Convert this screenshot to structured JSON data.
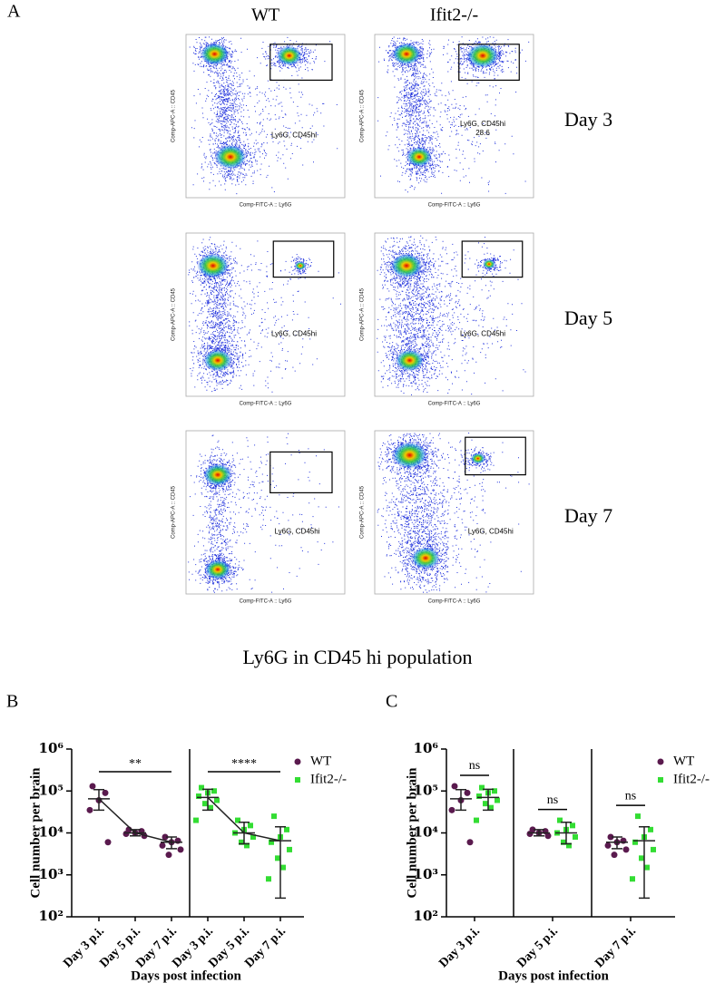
{
  "panel_a": {
    "label": "A",
    "columns": [
      "WT",
      "Ifit2-/-"
    ],
    "days": [
      "Day 3",
      "Day 5",
      "Day 7"
    ],
    "x_axis_label": "Comp-FITC-A :: Ly6G",
    "y_axis_label": "Comp-APC-A :: CD45",
    "gates": [
      [
        {
          "label": "Ly6G, CD45hi"
        },
        {
          "label": "Ly6G, CD45hi",
          "value": 28.6
        }
      ],
      [
        {
          "label": "Ly6G, CD45hi"
        },
        {
          "label": "Ly6G, CD45hi"
        }
      ],
      [
        {
          "label": "Ly6G, CD45hi"
        },
        {
          "label": "Ly6G, CD45hi"
        }
      ]
    ]
  },
  "section_title": "Ly6G in CD45 hi population",
  "chart_data": [
    {
      "type": "dot",
      "panel_label": "B",
      "y_label": "Cell number per brain",
      "x_label": "Days post infection",
      "log_scale": true,
      "connect_means": true,
      "ylim": [
        100,
        1000000
      ],
      "yticks": [
        {
          "value": 100,
          "label": "10²"
        },
        {
          "value": 1000,
          "label": "10³"
        },
        {
          "value": 10000,
          "label": "10⁴"
        },
        {
          "value": 100000,
          "label": "10⁵"
        },
        {
          "value": 1000000,
          "label": "10⁶"
        }
      ],
      "categories": [
        "Day 3 p.i.",
        "Day 5 p.i.",
        "Day 7 p.i.",
        "Day 3 p.i.",
        "Day 5 p.i.",
        "Day 7 p.i."
      ],
      "series": [
        {
          "name": "WT",
          "color": "#5a1a4e",
          "marker": "circle",
          "significance": "**",
          "values": [
            [
              130000,
              90000,
              60000,
              35000,
              6000
            ],
            [
              12000,
              11000,
              10000,
              9500,
              8500
            ],
            [
              8000,
              6500,
              6000,
              5000,
              4000,
              3000
            ],
            null,
            null,
            null
          ],
          "mean": [
            65000,
            10000,
            6000,
            null,
            null,
            null
          ],
          "whisker_low": [
            35000,
            8500,
            4200,
            null,
            null,
            null
          ],
          "whisker_high": [
            108000,
            12000,
            8000,
            null,
            null,
            null
          ]
        },
        {
          "name": "Ifit2-/-",
          "color": "#33dd33",
          "marker": "square",
          "significance": "****",
          "values": [
            null,
            null,
            null,
            [
              120000,
              100000,
              90000,
              75000,
              60000,
              50000,
              40000,
              20000
            ],
            [
              20000,
              15000,
              12000,
              10000,
              8000,
              6000,
              5000
            ],
            [
              25000,
              12000,
              8000,
              6000,
              4000,
              2500,
              1500,
              800
            ]
          ],
          "mean": [
            null,
            null,
            null,
            70000,
            10000,
            6500
          ],
          "whisker_low": [
            null,
            null,
            null,
            35000,
            5500,
            280
          ],
          "whisker_high": [
            null,
            null,
            null,
            110000,
            18000,
            14000
          ]
        }
      ]
    },
    {
      "type": "dot",
      "panel_label": "C",
      "y_label": "Cell number per brain",
      "x_label": "Days post infection",
      "log_scale": true,
      "connect_means": false,
      "ylim": [
        100,
        1000000
      ],
      "yticks": [
        {
          "value": 100,
          "label": "10²"
        },
        {
          "value": 1000,
          "label": "10³"
        },
        {
          "value": 10000,
          "label": "10⁴"
        },
        {
          "value": 100000,
          "label": "10⁵"
        },
        {
          "value": 1000000,
          "label": "10⁶"
        }
      ],
      "categories": [
        "Day 3 p.i.",
        "Day 5 p.i.",
        "Day 7 p.i."
      ],
      "category_annotations": [
        "ns",
        "ns",
        "ns"
      ],
      "series": [
        {
          "name": "WT",
          "color": "#5a1a4e",
          "marker": "circle",
          "values": [
            [
              130000,
              90000,
              60000,
              35000,
              6000
            ],
            [
              12000,
              11000,
              10000,
              9500,
              8500
            ],
            [
              8000,
              6500,
              6000,
              5000,
              4000,
              3000
            ]
          ],
          "mean": [
            65000,
            10000,
            6000
          ],
          "whisker_low": [
            35000,
            8500,
            4200
          ],
          "whisker_high": [
            108000,
            12000,
            8000
          ]
        },
        {
          "name": "Ifit2-/-",
          "color": "#33dd33",
          "marker": "square",
          "values": [
            [
              120000,
              100000,
              90000,
              75000,
              60000,
              50000,
              40000,
              20000
            ],
            [
              20000,
              15000,
              12000,
              10000,
              8000,
              6000,
              5000
            ],
            [
              25000,
              12000,
              8000,
              6000,
              4000,
              2500,
              1500,
              800
            ]
          ],
          "mean": [
            70000,
            10000,
            6500
          ],
          "whisker_low": [
            35000,
            5500,
            280
          ],
          "whisker_high": [
            110000,
            18000,
            14000
          ]
        }
      ]
    }
  ]
}
